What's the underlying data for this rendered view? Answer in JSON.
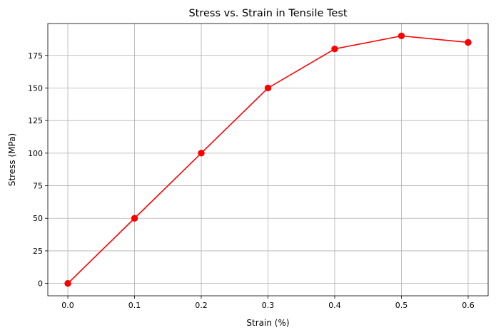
{
  "chart_data": {
    "type": "line",
    "title": "Stress vs. Strain in Tensile Test",
    "xlabel": "Strain (%)",
    "ylabel": "Stress (MPa)",
    "x": [
      0.0,
      0.1,
      0.2,
      0.3,
      0.4,
      0.5,
      0.6
    ],
    "series": [
      {
        "values": [
          0,
          50,
          100,
          150,
          180,
          190,
          185
        ],
        "color": "#ff0000",
        "marker": "circle"
      }
    ],
    "xlim": [
      -0.03,
      0.63
    ],
    "ylim": [
      -9.5,
      199.5
    ],
    "xticks": [
      0.0,
      0.1,
      0.2,
      0.3,
      0.4,
      0.5,
      0.6
    ],
    "xtick_labels": [
      "0.0",
      "0.1",
      "0.2",
      "0.3",
      "0.4",
      "0.5",
      "0.6"
    ],
    "yticks": [
      0,
      25,
      50,
      75,
      100,
      125,
      150,
      175
    ],
    "ytick_labels": [
      "0",
      "25",
      "50",
      "75",
      "100",
      "125",
      "150",
      "175"
    ],
    "grid": true
  }
}
